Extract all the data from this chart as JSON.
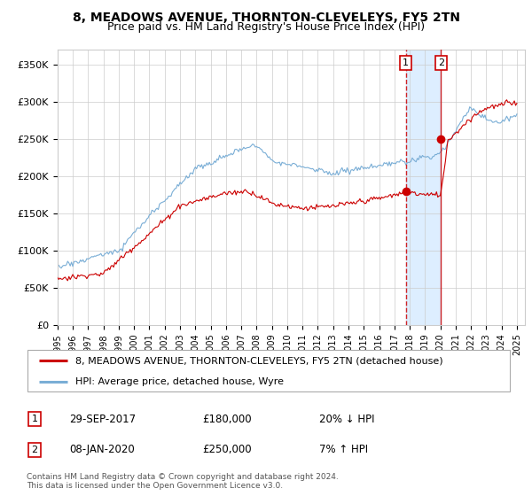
{
  "title": "8, MEADOWS AVENUE, THORNTON-CLEVELEYS, FY5 2TN",
  "subtitle": "Price paid vs. HM Land Registry's House Price Index (HPI)",
  "ylabel_ticks": [
    "£0",
    "£50K",
    "£100K",
    "£150K",
    "£200K",
    "£250K",
    "£300K",
    "£350K"
  ],
  "ytick_vals": [
    0,
    50000,
    100000,
    150000,
    200000,
    250000,
    300000,
    350000
  ],
  "ylim": [
    0,
    370000
  ],
  "xlim_start": 1995.0,
  "xlim_end": 2025.5,
  "legend_line1": "8, MEADOWS AVENUE, THORNTON-CLEVELEYS, FY5 2TN (detached house)",
  "legend_line2": "HPI: Average price, detached house, Wyre",
  "sale1_date": "29-SEP-2017",
  "sale1_price": "£180,000",
  "sale1_hpi": "20% ↓ HPI",
  "sale1_x": 2017.75,
  "sale1_y": 180000,
  "sale2_date": "08-JAN-2020",
  "sale2_price": "£250,000",
  "sale2_hpi": "7% ↑ HPI",
  "sale2_x": 2020.04,
  "sale2_y": 250000,
  "line_color_red": "#cc0000",
  "line_color_blue": "#7aaed6",
  "grid_color": "#cccccc",
  "bg_color": "#ffffff",
  "shade_color": "#ddeeff",
  "footer_text": "Contains HM Land Registry data © Crown copyright and database right 2024.\nThis data is licensed under the Open Government Licence v3.0.",
  "xtick_years": [
    1995,
    1996,
    1997,
    1998,
    1999,
    2000,
    2001,
    2002,
    2003,
    2004,
    2005,
    2006,
    2007,
    2008,
    2009,
    2010,
    2011,
    2012,
    2013,
    2014,
    2015,
    2016,
    2017,
    2018,
    2019,
    2020,
    2021,
    2022,
    2023,
    2024,
    2025
  ]
}
